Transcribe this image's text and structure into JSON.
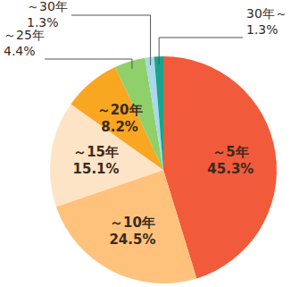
{
  "chart_data": {
    "type": "pie",
    "categories": [
      "～5年",
      "～10年",
      "～15年",
      "～20年",
      "～25年",
      "～30年",
      "30年～"
    ],
    "values": [
      45.3,
      24.5,
      15.1,
      8.2,
      4.4,
      1.3,
      1.3
    ],
    "value_labels": [
      "45.3%",
      "24.5%",
      "15.1%",
      "8.2%",
      "4.4%",
      "1.3%",
      "1.3%"
    ],
    "colors": [
      "#f15a3b",
      "#ffc27d",
      "#fde4c6",
      "#f9a620",
      "#8fd06a",
      "#a9d9ea",
      "#1aa38c"
    ],
    "data_labels": true
  }
}
